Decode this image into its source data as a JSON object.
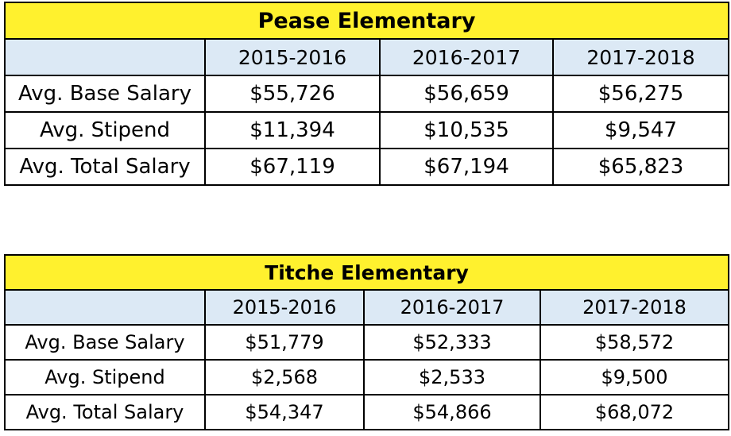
{
  "tables": [
    {
      "title": "Pease Elementary",
      "columns": [
        "",
        "2015-2016",
        "2016-2017",
        "2017-2018"
      ],
      "rows": [
        {
          "label": "Avg. Base Salary",
          "values": [
            "$55,726",
            "$56,659",
            "$56,275"
          ]
        },
        {
          "label": "Avg. Stipend",
          "values": [
            "$11,394",
            "$10,535",
            "$9,547"
          ]
        },
        {
          "label": "Avg. Total Salary",
          "values": [
            "$67,119",
            "$67,194",
            "$65,823"
          ]
        }
      ]
    },
    {
      "title": "Titche Elementary",
      "columns": [
        "",
        "2015-2016",
        "2016-2017",
        "2017-2018"
      ],
      "rows": [
        {
          "label": "Avg. Base Salary",
          "values": [
            "$51,779",
            "$52,333",
            "$58,572"
          ]
        },
        {
          "label": "Avg. Stipend",
          "values": [
            "$2,568",
            "$2,533",
            "$9,500"
          ]
        },
        {
          "label": "Avg. Total Salary",
          "values": [
            "$54,347",
            "$54,866",
            "$68,072"
          ]
        }
      ]
    }
  ],
  "colors": {
    "title_background": "#fff12e",
    "header_background": "#dce9f5",
    "border": "#000000"
  }
}
